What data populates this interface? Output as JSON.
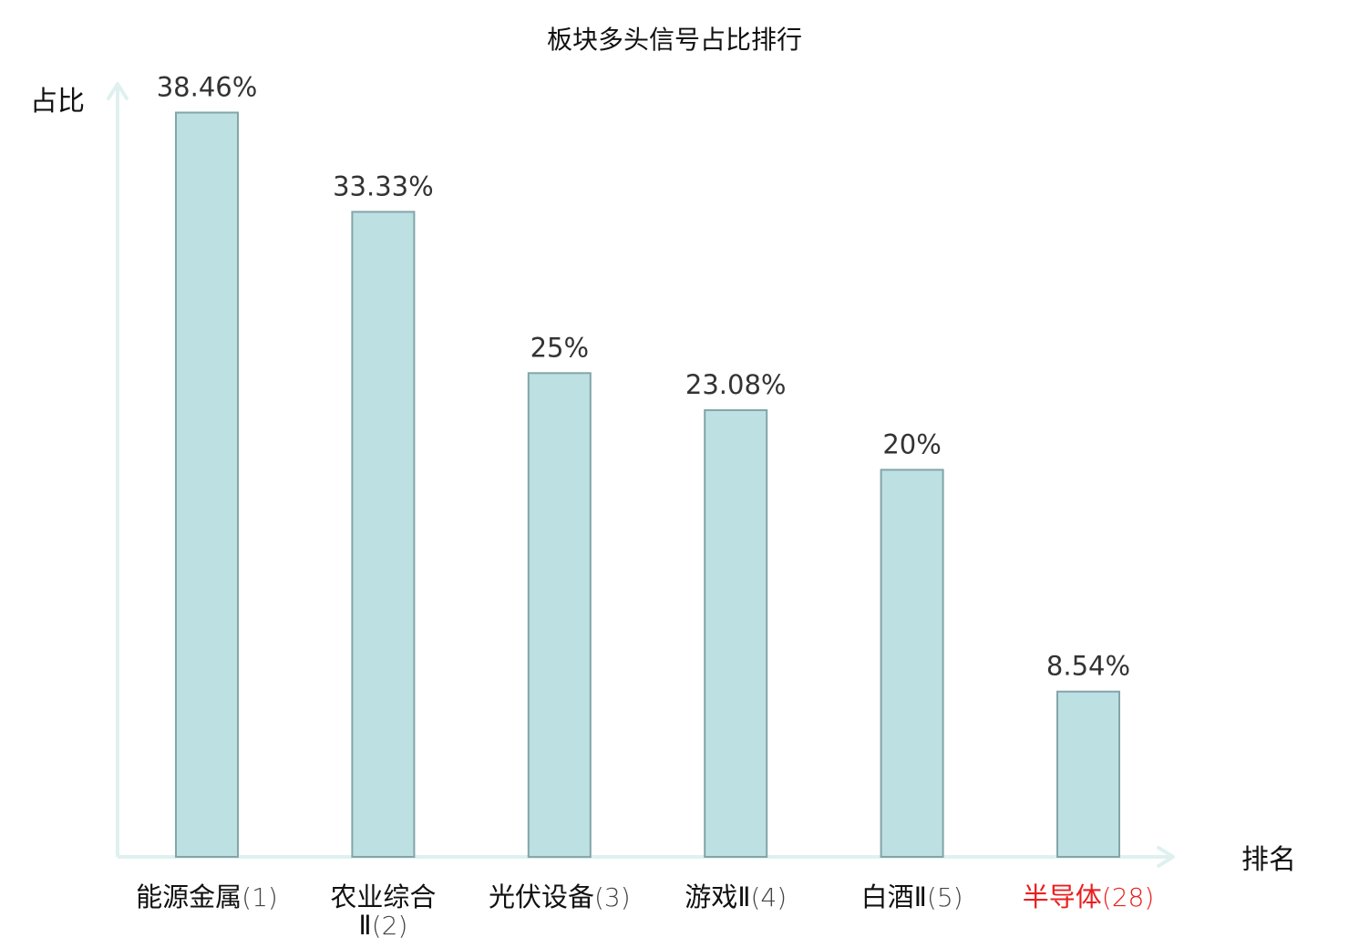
{
  "chart_data": {
    "type": "bar",
    "title": "板块多头信号占比排行",
    "ylabel": "占比",
    "xlabel": "排名",
    "ylim": [
      0,
      40
    ],
    "grid": false,
    "legend": "none",
    "categories": [
      {
        "name": "能源金属",
        "rank": "(1)",
        "highlight": false
      },
      {
        "name": "农业综合",
        "name2": "Ⅱ",
        "rank": "(2)",
        "highlight": false
      },
      {
        "name": "光伏设备",
        "rank": "(3)",
        "highlight": false
      },
      {
        "name": "游戏Ⅱ",
        "rank": "(4)",
        "highlight": false
      },
      {
        "name": "白酒Ⅱ",
        "rank": "(5)",
        "highlight": false
      },
      {
        "name": "半导体",
        "rank": "(28)",
        "highlight": true
      }
    ],
    "values": [
      38.46,
      33.33,
      25,
      23.08,
      20,
      8.54
    ],
    "value_labels": [
      "38.46%",
      "33.33%",
      "25%",
      "23.08%",
      "20%",
      "8.54%"
    ],
    "colors": {
      "bar_fill": "#bde0e3",
      "bar_stroke": "#83a5a8",
      "axis": "#dff1ef",
      "highlight_text": "#e8201e",
      "normal_text": "#111111",
      "rank_text": "#444444"
    }
  }
}
